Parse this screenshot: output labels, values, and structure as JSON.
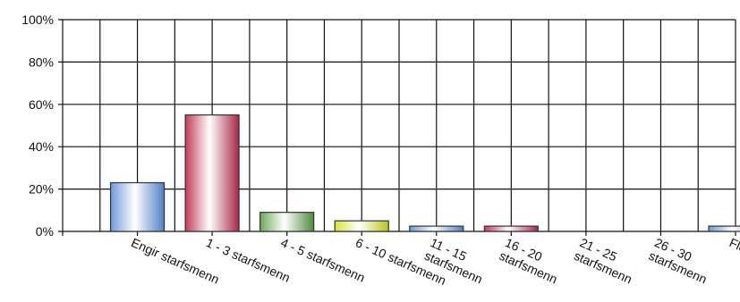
{
  "chart_data": {
    "type": "bar",
    "title": "",
    "xlabel": "",
    "ylabel": "",
    "ylim": [
      0,
      100
    ],
    "yticks": [
      "0%",
      "20%",
      "40%",
      "60%",
      "80%",
      "100%"
    ],
    "grid": true,
    "categories": [
      [
        "Engir starfsmenn"
      ],
      [
        "1 - 3 starfsmenn"
      ],
      [
        "4 - 5 starfsmenn"
      ],
      [
        "6 - 10 starfsmenn"
      ],
      [
        "11 - 15",
        "starfsmenn"
      ],
      [
        "16 - 20",
        "starfsmenn"
      ],
      [
        "21 - 25",
        "starfsmenn"
      ],
      [
        "26 - 30",
        "starfsmenn"
      ],
      [
        "Fleiri"
      ]
    ],
    "values": [
      23,
      55,
      9,
      5,
      2.5,
      2.5,
      0,
      0,
      2.5
    ],
    "bar_colors": [
      "blue",
      "red",
      "green",
      "yellow",
      "blue",
      "red",
      "green",
      "yellow",
      "blue"
    ],
    "palette": {
      "blue": {
        "edge": "#6e9ad6",
        "mid": "#ffffff",
        "dark": "#4f7fc4"
      },
      "red": {
        "edge": "#c53a5a",
        "mid": "#ffffff",
        "dark": "#a82644"
      },
      "green": {
        "edge": "#6da95a",
        "mid": "#ffffff",
        "dark": "#4f8c3f"
      },
      "yellow": {
        "edge": "#d8e23a",
        "mid": "#ffffff",
        "dark": "#b9c41c"
      }
    }
  }
}
